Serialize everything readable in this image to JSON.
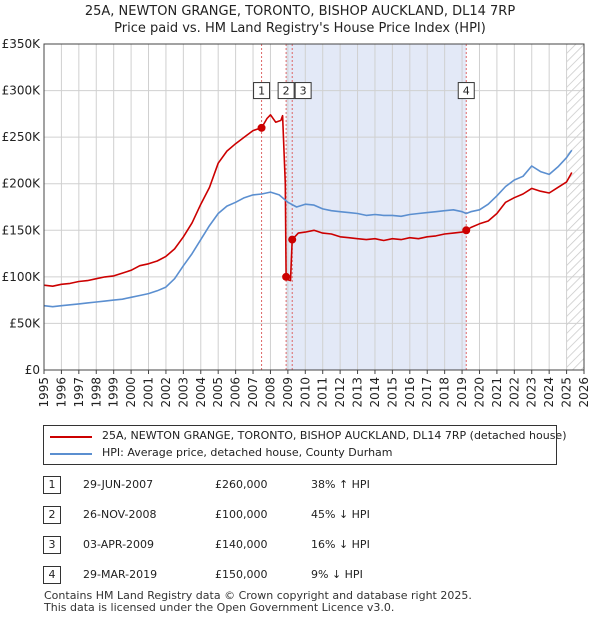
{
  "title_line1": "25A, NEWTON GRANGE, TORONTO, BISHOP AUCKLAND, DL14 7RP",
  "title_line2": "Price paid vs. HM Land Registry's House Price Index (HPI)",
  "chart_data": {
    "type": "line",
    "x_range": [
      1995,
      2026
    ],
    "y_range": [
      0,
      350000
    ],
    "y_ticks": [
      {
        "value": 0,
        "label": "£0"
      },
      {
        "value": 50000,
        "label": "£50K"
      },
      {
        "value": 100000,
        "label": "£100K"
      },
      {
        "value": 150000,
        "label": "£150K"
      },
      {
        "value": 200000,
        "label": "£200K"
      },
      {
        "value": 250000,
        "label": "£250K"
      },
      {
        "value": 300000,
        "label": "£300K"
      },
      {
        "value": 350000,
        "label": "£350K"
      }
    ],
    "x_ticks": [
      1995,
      1996,
      1997,
      1998,
      1999,
      2000,
      2001,
      2002,
      2003,
      2004,
      2005,
      2006,
      2007,
      2008,
      2009,
      2010,
      2011,
      2012,
      2013,
      2014,
      2015,
      2016,
      2017,
      2018,
      2019,
      2020,
      2021,
      2022,
      2023,
      2024,
      2025,
      2026
    ],
    "grid": true,
    "shaded_period": [
      2008.9,
      2019.24
    ],
    "forecast_from": 2025.0,
    "series": [
      {
        "name": "25A, NEWTON GRANGE, TORONTO, BISHOP AUCKLAND, DL14 7RP (detached house)",
        "color": "#cc0000",
        "points": [
          [
            1995.0,
            91000
          ],
          [
            1995.5,
            90000
          ],
          [
            1996.0,
            92000
          ],
          [
            1996.5,
            93000
          ],
          [
            1997.0,
            95000
          ],
          [
            1997.5,
            96000
          ],
          [
            1998.0,
            98000
          ],
          [
            1998.5,
            100000
          ],
          [
            1999.0,
            101000
          ],
          [
            1999.5,
            104000
          ],
          [
            2000.0,
            107000
          ],
          [
            2000.5,
            112000
          ],
          [
            2001.0,
            114000
          ],
          [
            2001.5,
            117000
          ],
          [
            2002.0,
            122000
          ],
          [
            2002.5,
            130000
          ],
          [
            2003.0,
            143000
          ],
          [
            2003.5,
            158000
          ],
          [
            2004.0,
            178000
          ],
          [
            2004.5,
            196000
          ],
          [
            2005.0,
            222000
          ],
          [
            2005.5,
            235000
          ],
          [
            2006.0,
            243000
          ],
          [
            2006.5,
            250000
          ],
          [
            2007.0,
            257000
          ],
          [
            2007.49,
            260000
          ],
          [
            2007.8,
            270000
          ],
          [
            2008.0,
            274000
          ],
          [
            2008.3,
            266000
          ],
          [
            2008.6,
            268000
          ],
          [
            2008.7,
            273000
          ],
          [
            2008.85,
            200000
          ],
          [
            2008.9,
            100000
          ],
          [
            2009.0,
            97000
          ],
          [
            2009.15,
            96000
          ],
          [
            2009.25,
            140000
          ],
          [
            2009.4,
            143000
          ],
          [
            2009.6,
            147000
          ],
          [
            2010.0,
            148000
          ],
          [
            2010.5,
            150000
          ],
          [
            2011.0,
            147000
          ],
          [
            2011.5,
            146000
          ],
          [
            2012.0,
            143000
          ],
          [
            2012.5,
            142000
          ],
          [
            2013.0,
            141000
          ],
          [
            2013.5,
            140000
          ],
          [
            2014.0,
            141000
          ],
          [
            2014.5,
            139000
          ],
          [
            2015.0,
            141000
          ],
          [
            2015.5,
            140000
          ],
          [
            2016.0,
            142000
          ],
          [
            2016.5,
            141000
          ],
          [
            2017.0,
            143000
          ],
          [
            2017.5,
            144000
          ],
          [
            2018.0,
            146000
          ],
          [
            2018.5,
            147000
          ],
          [
            2019.0,
            148000
          ],
          [
            2019.24,
            150000
          ],
          [
            2019.5,
            153000
          ],
          [
            2020.0,
            157000
          ],
          [
            2020.5,
            160000
          ],
          [
            2021.0,
            168000
          ],
          [
            2021.5,
            180000
          ],
          [
            2022.0,
            185000
          ],
          [
            2022.5,
            189000
          ],
          [
            2023.0,
            195000
          ],
          [
            2023.5,
            192000
          ],
          [
            2024.0,
            190000
          ],
          [
            2024.5,
            196000
          ],
          [
            2025.0,
            202000
          ],
          [
            2025.3,
            212000
          ]
        ]
      },
      {
        "name": "HPI: Average price, detached house, County Durham",
        "color": "#5b8fd0",
        "points": [
          [
            1995.0,
            69000
          ],
          [
            1995.5,
            68000
          ],
          [
            1996.0,
            69000
          ],
          [
            1996.5,
            70000
          ],
          [
            1997.0,
            71000
          ],
          [
            1997.5,
            72000
          ],
          [
            1998.0,
            73000
          ],
          [
            1998.5,
            74000
          ],
          [
            1999.0,
            75000
          ],
          [
            1999.5,
            76000
          ],
          [
            2000.0,
            78000
          ],
          [
            2000.5,
            80000
          ],
          [
            2001.0,
            82000
          ],
          [
            2001.5,
            85000
          ],
          [
            2002.0,
            89000
          ],
          [
            2002.5,
            98000
          ],
          [
            2003.0,
            112000
          ],
          [
            2003.5,
            125000
          ],
          [
            2004.0,
            140000
          ],
          [
            2004.5,
            155000
          ],
          [
            2005.0,
            168000
          ],
          [
            2005.5,
            176000
          ],
          [
            2006.0,
            180000
          ],
          [
            2006.5,
            185000
          ],
          [
            2007.0,
            188000
          ],
          [
            2007.5,
            189000
          ],
          [
            2008.0,
            191000
          ],
          [
            2008.5,
            188000
          ],
          [
            2009.0,
            180000
          ],
          [
            2009.5,
            175000
          ],
          [
            2010.0,
            178000
          ],
          [
            2010.5,
            177000
          ],
          [
            2011.0,
            173000
          ],
          [
            2011.5,
            171000
          ],
          [
            2012.0,
            170000
          ],
          [
            2012.5,
            169000
          ],
          [
            2013.0,
            168000
          ],
          [
            2013.5,
            166000
          ],
          [
            2014.0,
            167000
          ],
          [
            2014.5,
            166000
          ],
          [
            2015.0,
            166000
          ],
          [
            2015.5,
            165000
          ],
          [
            2016.0,
            167000
          ],
          [
            2016.5,
            168000
          ],
          [
            2017.0,
            169000
          ],
          [
            2017.5,
            170000
          ],
          [
            2018.0,
            171000
          ],
          [
            2018.5,
            172000
          ],
          [
            2019.0,
            170000
          ],
          [
            2019.24,
            168000
          ],
          [
            2019.5,
            170000
          ],
          [
            2020.0,
            172000
          ],
          [
            2020.5,
            178000
          ],
          [
            2021.0,
            187000
          ],
          [
            2021.5,
            197000
          ],
          [
            2022.0,
            204000
          ],
          [
            2022.5,
            208000
          ],
          [
            2023.0,
            219000
          ],
          [
            2023.5,
            213000
          ],
          [
            2024.0,
            210000
          ],
          [
            2024.5,
            218000
          ],
          [
            2025.0,
            228000
          ],
          [
            2025.3,
            236000
          ]
        ]
      }
    ],
    "sales": [
      {
        "n": "1",
        "x": 2007.49,
        "price": 260000,
        "label_y": 300000
      },
      {
        "n": "2",
        "x": 2008.9,
        "price": 100000,
        "label_y": 300000
      },
      {
        "n": "3",
        "x": 2009.25,
        "price": 140000,
        "label_y": 300000
      },
      {
        "n": "4",
        "x": 2019.24,
        "price": 150000,
        "label_y": 300000
      }
    ]
  },
  "legend": {
    "property_label": "25A, NEWTON GRANGE, TORONTO, BISHOP AUCKLAND, DL14 7RP (detached house)",
    "hpi_label": "HPI: Average price, detached house, County Durham",
    "property_color": "#cc0000",
    "hpi_color": "#5b8fd0"
  },
  "sales_table": [
    {
      "num": "1",
      "date": "29-JUN-2007",
      "price": "£260,000",
      "hpi": "38% ↑ HPI"
    },
    {
      "num": "2",
      "date": "26-NOV-2008",
      "price": "£100,000",
      "hpi": "45% ↓ HPI"
    },
    {
      "num": "3",
      "date": "03-APR-2009",
      "price": "£140,000",
      "hpi": "16% ↓ HPI"
    },
    {
      "num": "4",
      "date": "29-MAR-2019",
      "price": "£150,000",
      "hpi": "9% ↓ HPI"
    }
  ],
  "footer": {
    "line1": "Contains HM Land Registry data © Crown copyright and database right 2025.",
    "line2": "This data is licensed under the Open Government Licence v3.0."
  }
}
